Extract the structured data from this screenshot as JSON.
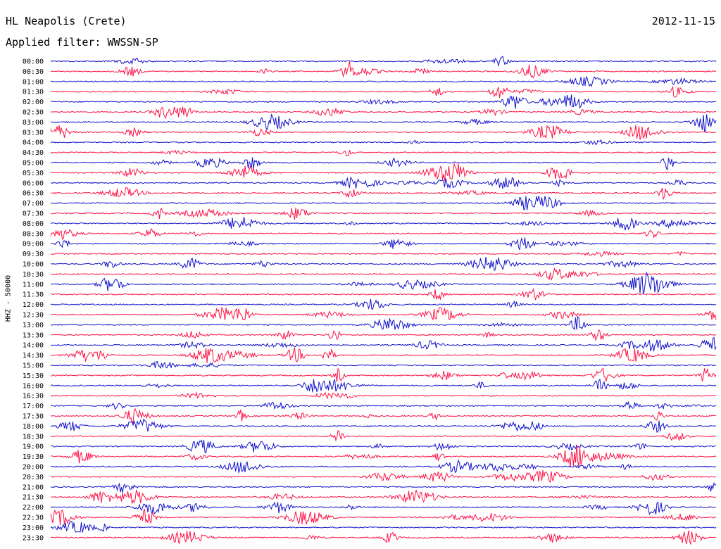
{
  "header": {
    "station": "HL Neapolis (Crete)",
    "filter": "Applied filter: WWSSN-SP",
    "date": "2012-11-15"
  },
  "chart_data": {
    "type": "line",
    "title": "HL Neapolis (Crete)",
    "subtitle": "Applied filter: WWSSN-SP",
    "date": "2012-11-15",
    "ylabel": "HHZ - 50000",
    "row_labels": [
      "00:00",
      "00:30",
      "01:00",
      "01:30",
      "02:00",
      "02:30",
      "03:00",
      "03:30",
      "04:00",
      "04:30",
      "05:00",
      "05:30",
      "06:00",
      "06:30",
      "07:00",
      "07:30",
      "08:00",
      "08:30",
      "09:00",
      "09:30",
      "10:00",
      "10:30",
      "11:00",
      "11:30",
      "12:00",
      "12:30",
      "13:00",
      "13:30",
      "14:00",
      "14:30",
      "15:00",
      "15:30",
      "16:00",
      "16:30",
      "17:00",
      "17:30",
      "18:00",
      "18:30",
      "19:00",
      "19:30",
      "20:00",
      "20:30",
      "21:00",
      "21:30",
      "22:00",
      "22:30",
      "23:00",
      "23:30"
    ],
    "colors": {
      "even_rows": "#1111cc",
      "odd_rows": "#ff1144"
    },
    "grid": false,
    "legend": "none"
  }
}
